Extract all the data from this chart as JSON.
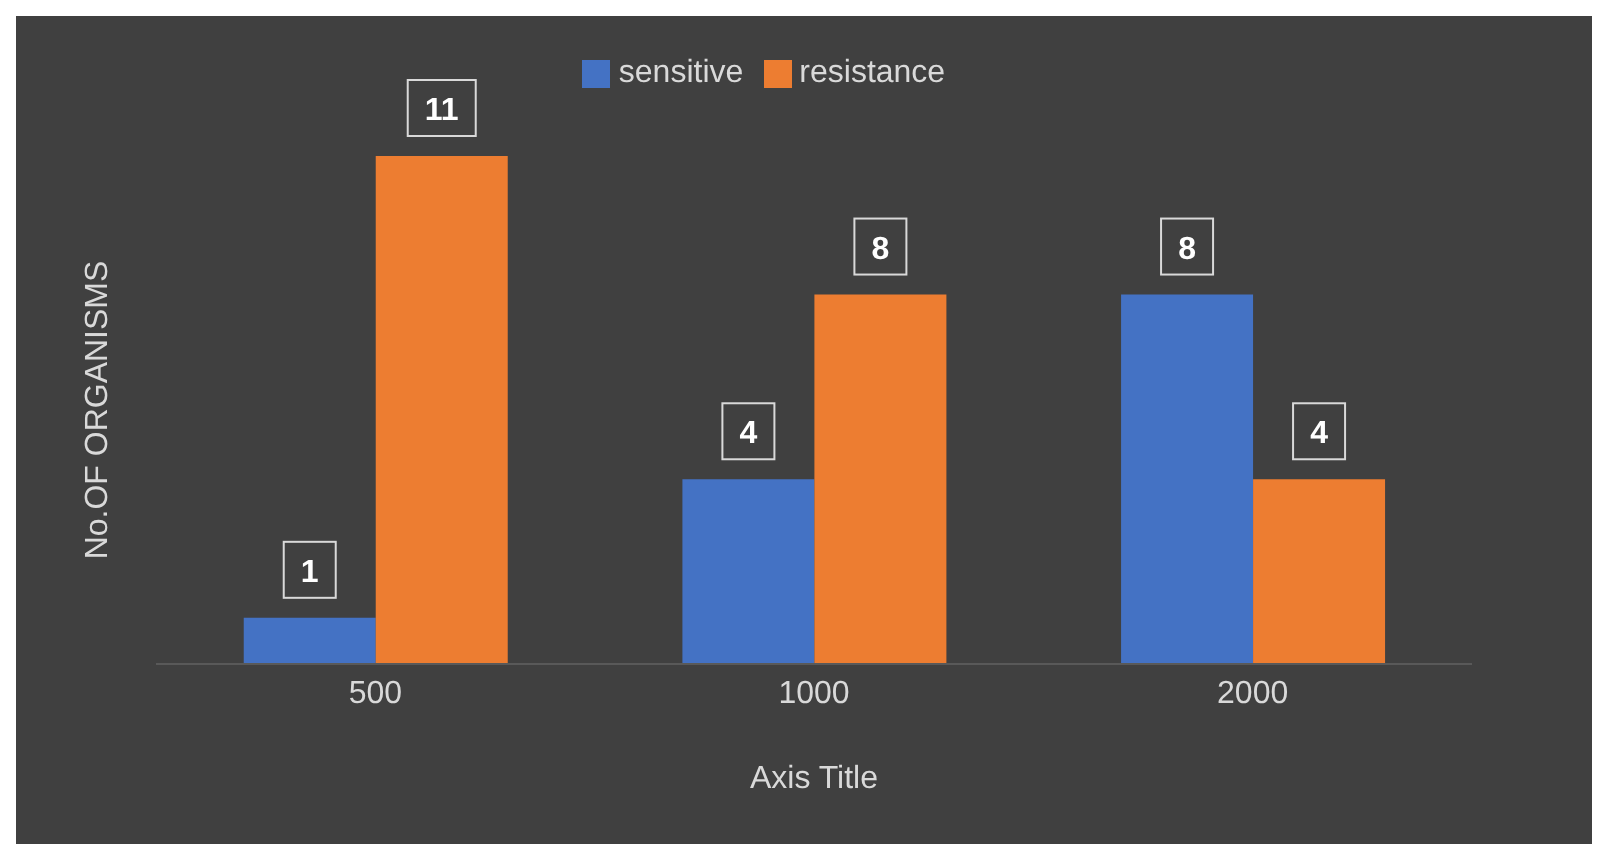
{
  "chart_data": {
    "type": "bar",
    "xlabel": "Axis Title",
    "ylabel": "No.OF ORGANISMS",
    "categories": [
      "500",
      "1000",
      "2000"
    ],
    "series": [
      {
        "name": "sensitive",
        "color": "#4472c4",
        "values": [
          1,
          4,
          8
        ]
      },
      {
        "name": "resistance",
        "color": "#ed7d31",
        "values": [
          11,
          8,
          4
        ]
      }
    ],
    "data_labels": true,
    "legend": "top",
    "grid": false
  }
}
